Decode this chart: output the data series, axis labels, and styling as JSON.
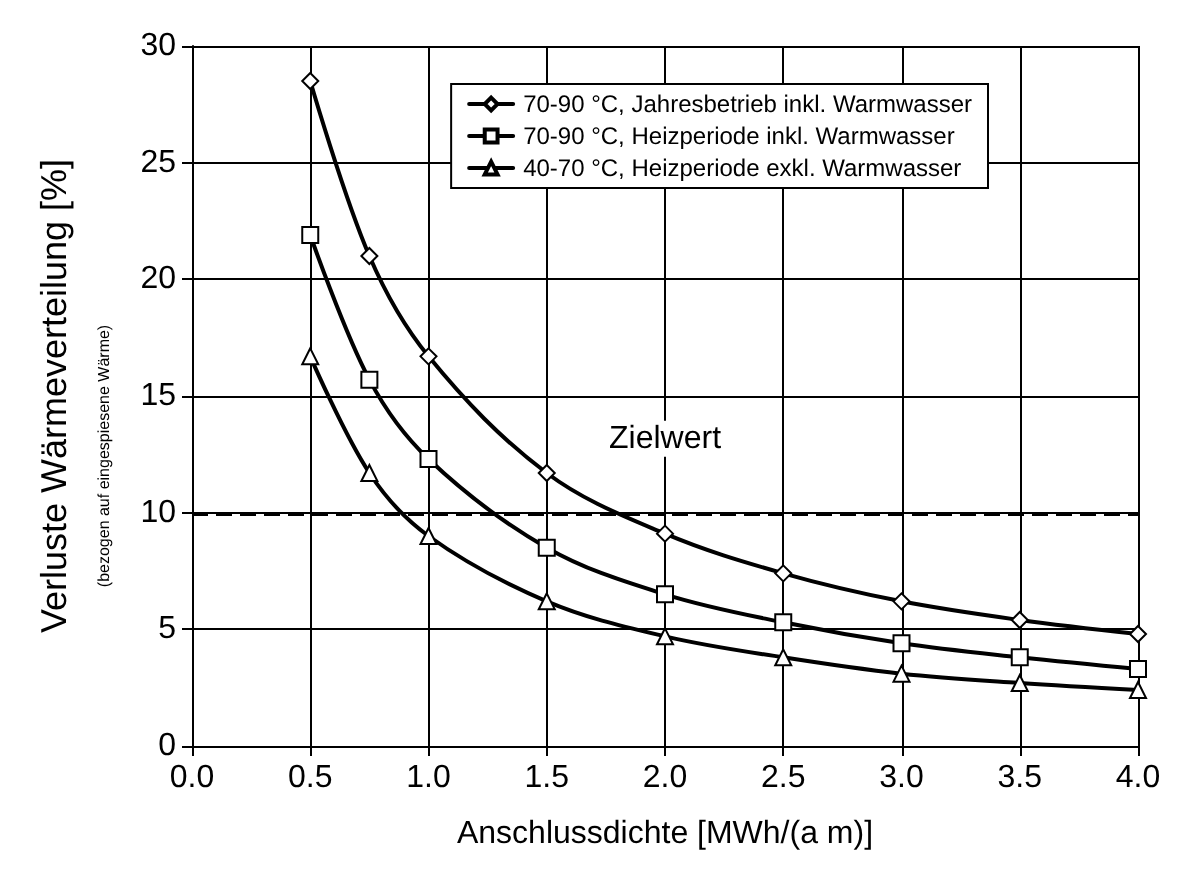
{
  "chart_data": {
    "type": "line",
    "xlabel": "Anschlussdichte [MWh/(a m)]",
    "ylabel": "Verluste Wärmeverteilung [%]",
    "annotations": [
      "(bezogen auf eingespiesene Wärme)"
    ],
    "x": [
      0.5,
      0.75,
      1.0,
      1.5,
      2.0,
      2.5,
      3.0,
      3.5,
      4.0
    ],
    "series": [
      {
        "name": "70-90 °C, Jahresbetrieb inkl. Warmwasser",
        "color": "#000000",
        "marker": "diamond",
        "values": [
          28.5,
          21.0,
          16.7,
          11.7,
          9.1,
          7.4,
          6.2,
          5.4,
          4.8
        ]
      },
      {
        "name": "70-90 °C, Heizperiode inkl. Warmwasser",
        "color": "#000000",
        "marker": "square",
        "values": [
          21.9,
          15.7,
          12.3,
          8.5,
          6.5,
          5.3,
          4.4,
          3.8,
          3.3
        ]
      },
      {
        "name": "40-70 °C, Heizperiode exkl. Warmwasser",
        "color": "#000000",
        "marker": "triangle",
        "values": [
          16.7,
          11.7,
          9.0,
          6.2,
          4.7,
          3.8,
          3.1,
          2.7,
          2.4
        ]
      }
    ],
    "xlim": [
      0,
      4
    ],
    "xticks": [
      {
        "value": 0,
        "label": "0.0"
      },
      0.5,
      {
        "value": 1,
        "label": "1.0"
      },
      1.5,
      {
        "value": 2,
        "label": "2.0"
      },
      2.5,
      {
        "value": 3,
        "label": "3.0"
      },
      3.5,
      {
        "value": 4,
        "label": "4.0"
      }
    ],
    "ylim": [
      0,
      30
    ],
    "yticks": [
      0,
      5,
      10,
      15,
      20,
      25,
      30
    ],
    "ref_lines": [
      {
        "axis": "y",
        "value": 10,
        "label": "Zielwert",
        "color": "#000000",
        "line_style": "dashed"
      }
    ],
    "grid": true,
    "legend": "top right",
    "line_style": "solid"
  }
}
